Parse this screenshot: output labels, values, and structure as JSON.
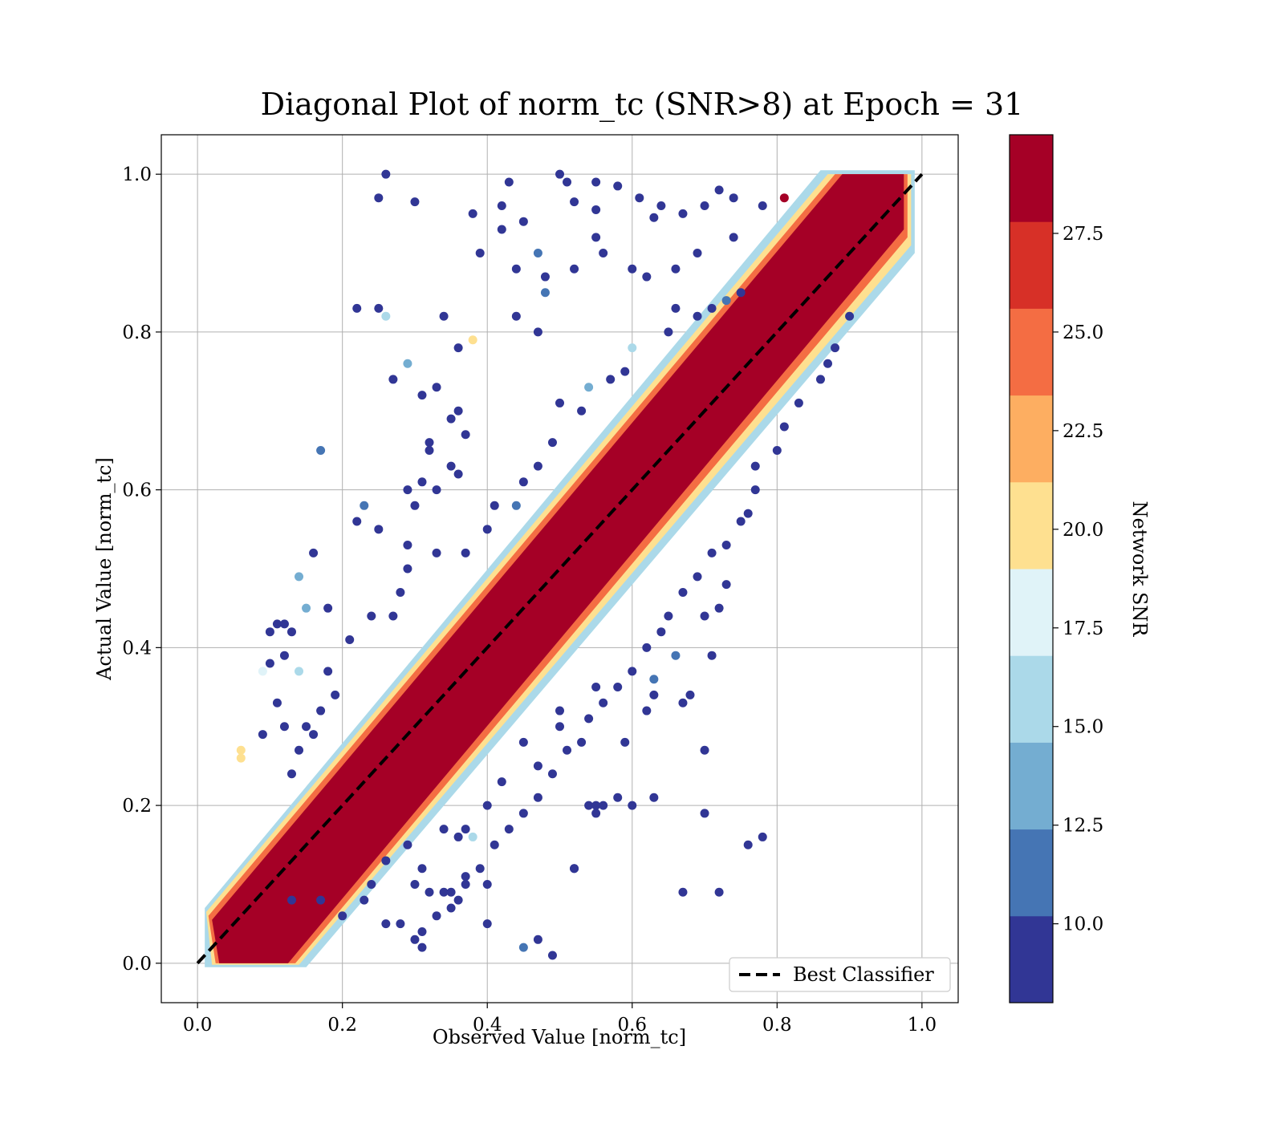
{
  "chart_data": {
    "type": "scatter",
    "title": "Diagonal Plot of norm_tc (SNR>8) at Epoch = 31",
    "xlabel": "Observed Value [norm_tc]",
    "ylabel": "Actual Value [norm_tc]",
    "xlim": [
      -0.05,
      1.05
    ],
    "ylim": [
      -0.05,
      1.05
    ],
    "xticks": [
      "0.0",
      "0.2",
      "0.4",
      "0.6",
      "0.8",
      "1.0"
    ],
    "yticks": [
      "0.0",
      "0.2",
      "0.4",
      "0.6",
      "0.8",
      "1.0"
    ],
    "grid": true,
    "legend": {
      "position": "lower-right",
      "entries": [
        {
          "label": "Best Classifier",
          "style": "dashed",
          "color": "#000000"
        }
      ]
    },
    "reference_line": {
      "name": "Best Classifier",
      "x": [
        0,
        1
      ],
      "y": [
        0,
        1
      ]
    },
    "colorbar": {
      "label": "Network SNR",
      "range": [
        8,
        30
      ],
      "ticks": [
        "10.0",
        "12.5",
        "15.0",
        "17.5",
        "20.0",
        "22.5",
        "25.0",
        "27.5"
      ],
      "tick_values": [
        10,
        12.5,
        15,
        17.5,
        20,
        22.5,
        25,
        27.5
      ],
      "colors": [
        "#313695",
        "#4575b4",
        "#74add1",
        "#abd9e9",
        "#e0f3f8",
        "#fee090",
        "#fdae61",
        "#f46d43",
        "#d73027",
        "#a50026"
      ]
    },
    "series": [
      {
        "description_points": "Outlier samples (x, y, snr)",
        "points": [
          [
            0.26,
            1.0,
            9
          ],
          [
            0.25,
            0.97,
            9
          ],
          [
            0.3,
            0.965,
            9
          ],
          [
            0.38,
            0.95,
            9
          ],
          [
            0.42,
            0.96,
            9
          ],
          [
            0.43,
            0.99,
            9
          ],
          [
            0.5,
            1.0,
            9
          ],
          [
            0.51,
            0.99,
            9
          ],
          [
            0.52,
            0.965,
            9
          ],
          [
            0.55,
            0.955,
            9
          ],
          [
            0.55,
            0.99,
            9
          ],
          [
            0.58,
            0.985,
            9
          ],
          [
            0.61,
            0.97,
            9
          ],
          [
            0.64,
            0.96,
            9
          ],
          [
            0.63,
            0.945,
            9
          ],
          [
            0.67,
            0.95,
            9
          ],
          [
            0.7,
            0.96,
            9
          ],
          [
            0.72,
            0.98,
            9
          ],
          [
            0.74,
            0.97,
            9
          ],
          [
            0.45,
            0.94,
            9
          ],
          [
            0.42,
            0.93,
            9
          ],
          [
            0.39,
            0.9,
            9
          ],
          [
            0.47,
            0.9,
            12
          ],
          [
            0.44,
            0.88,
            9
          ],
          [
            0.48,
            0.87,
            9
          ],
          [
            0.48,
            0.85,
            12
          ],
          [
            0.52,
            0.88,
            9
          ],
          [
            0.55,
            0.92,
            9
          ],
          [
            0.56,
            0.9,
            9
          ],
          [
            0.6,
            0.88,
            9
          ],
          [
            0.62,
            0.87,
            9
          ],
          [
            0.66,
            0.88,
            9
          ],
          [
            0.69,
            0.9,
            9
          ],
          [
            0.74,
            0.92,
            9
          ],
          [
            0.22,
            0.83,
            9
          ],
          [
            0.25,
            0.83,
            9
          ],
          [
            0.26,
            0.82,
            15
          ],
          [
            0.34,
            0.82,
            9
          ],
          [
            0.44,
            0.82,
            9
          ],
          [
            0.47,
            0.8,
            9
          ],
          [
            0.38,
            0.79,
            21
          ],
          [
            0.36,
            0.78,
            9
          ],
          [
            0.29,
            0.76,
            14
          ],
          [
            0.27,
            0.74,
            9
          ],
          [
            0.33,
            0.73,
            9
          ],
          [
            0.31,
            0.72,
            9
          ],
          [
            0.35,
            0.69,
            9
          ],
          [
            0.36,
            0.7,
            9
          ],
          [
            0.37,
            0.67,
            9
          ],
          [
            0.32,
            0.66,
            9
          ],
          [
            0.32,
            0.65,
            9
          ],
          [
            0.35,
            0.63,
            9
          ],
          [
            0.36,
            0.62,
            9
          ],
          [
            0.17,
            0.65,
            12
          ],
          [
            0.29,
            0.6,
            9
          ],
          [
            0.31,
            0.61,
            9
          ],
          [
            0.33,
            0.6,
            9
          ],
          [
            0.23,
            0.58,
            12
          ],
          [
            0.3,
            0.58,
            9
          ],
          [
            0.22,
            0.56,
            9
          ],
          [
            0.25,
            0.55,
            9
          ],
          [
            0.29,
            0.53,
            9
          ],
          [
            0.16,
            0.52,
            9
          ],
          [
            0.14,
            0.49,
            14
          ],
          [
            0.15,
            0.45,
            14
          ],
          [
            0.11,
            0.43,
            9
          ],
          [
            0.1,
            0.42,
            9
          ],
          [
            0.12,
            0.43,
            9
          ],
          [
            0.13,
            0.42,
            9
          ],
          [
            0.18,
            0.45,
            9
          ],
          [
            0.12,
            0.39,
            9
          ],
          [
            0.1,
            0.38,
            9
          ],
          [
            0.09,
            0.37,
            17
          ],
          [
            0.14,
            0.37,
            15
          ],
          [
            0.11,
            0.33,
            9
          ],
          [
            0.12,
            0.3,
            9
          ],
          [
            0.09,
            0.29,
            9
          ],
          [
            0.06,
            0.27,
            20
          ],
          [
            0.06,
            0.26,
            20
          ],
          [
            0.52,
            0.12,
            9
          ],
          [
            0.52,
            0.12,
            9
          ],
          [
            0.54,
            0.2,
            9
          ],
          [
            0.55,
            0.19,
            9
          ],
          [
            0.56,
            0.2,
            9
          ],
          [
            0.6,
            0.2,
            9
          ],
          [
            0.55,
            0.2,
            9
          ],
          [
            0.58,
            0.21,
            9
          ],
          [
            0.63,
            0.21,
            9
          ],
          [
            0.7,
            0.19,
            9
          ],
          [
            0.7,
            0.27,
            9
          ],
          [
            0.67,
            0.33,
            9
          ],
          [
            0.68,
            0.34,
            9
          ],
          [
            0.66,
            0.39,
            12
          ],
          [
            0.71,
            0.39,
            9
          ],
          [
            0.7,
            0.44,
            9
          ],
          [
            0.72,
            0.45,
            9
          ],
          [
            0.73,
            0.48,
            9
          ],
          [
            0.76,
            0.15,
            9
          ],
          [
            0.78,
            0.16,
            9
          ],
          [
            0.67,
            0.09,
            9
          ],
          [
            0.72,
            0.09,
            9
          ],
          [
            0.49,
            0.01,
            9
          ],
          [
            0.47,
            0.03,
            9
          ],
          [
            0.45,
            0.02,
            12
          ],
          [
            0.4,
            0.05,
            9
          ],
          [
            0.4,
            0.1,
            9
          ],
          [
            0.31,
            0.02,
            9
          ],
          [
            0.3,
            0.03,
            9
          ],
          [
            0.63,
            0.36,
            12
          ],
          [
            0.63,
            0.34,
            9
          ],
          [
            0.62,
            0.32,
            9
          ],
          [
            0.59,
            0.28,
            9
          ],
          [
            0.55,
            0.35,
            9
          ],
          [
            0.5,
            0.32,
            9
          ],
          [
            0.5,
            0.3,
            9
          ],
          [
            0.47,
            0.25,
            9
          ],
          [
            0.45,
            0.28,
            9
          ],
          [
            0.42,
            0.23,
            9
          ],
          [
            0.4,
            0.2,
            9
          ],
          [
            0.37,
            0.1,
            9
          ],
          [
            0.36,
            0.08,
            9
          ],
          [
            0.35,
            0.07,
            9
          ],
          [
            0.34,
            0.09,
            9
          ],
          [
            0.32,
            0.09,
            9
          ],
          [
            0.3,
            0.1,
            9
          ],
          [
            0.28,
            0.05,
            9
          ],
          [
            0.26,
            0.05,
            9
          ],
          [
            0.38,
            0.16,
            15
          ],
          [
            0.37,
            0.17,
            9
          ],
          [
            0.36,
            0.16,
            9
          ],
          [
            0.34,
            0.17,
            9
          ],
          [
            0.31,
            0.12,
            9
          ],
          [
            0.29,
            0.15,
            9
          ],
          [
            0.26,
            0.13,
            9
          ],
          [
            0.24,
            0.1,
            9
          ],
          [
            0.23,
            0.08,
            9
          ],
          [
            0.2,
            0.06,
            9
          ],
          [
            0.17,
            0.08,
            9
          ],
          [
            0.13,
            0.08,
            9
          ],
          [
            0.81,
            0.97,
            28
          ],
          [
            0.78,
            0.96,
            9
          ],
          [
            0.73,
            0.84,
            12
          ],
          [
            0.75,
            0.85,
            9
          ],
          [
            0.71,
            0.83,
            9
          ],
          [
            0.69,
            0.82,
            9
          ],
          [
            0.66,
            0.83,
            9
          ],
          [
            0.65,
            0.8,
            9
          ],
          [
            0.6,
            0.78,
            15
          ],
          [
            0.59,
            0.75,
            9
          ],
          [
            0.57,
            0.74,
            9
          ],
          [
            0.54,
            0.73,
            14
          ],
          [
            0.53,
            0.7,
            9
          ],
          [
            0.5,
            0.71,
            9
          ],
          [
            0.49,
            0.66,
            9
          ],
          [
            0.47,
            0.63,
            9
          ],
          [
            0.45,
            0.61,
            9
          ],
          [
            0.44,
            0.58,
            12
          ],
          [
            0.41,
            0.58,
            9
          ],
          [
            0.4,
            0.55,
            9
          ],
          [
            0.37,
            0.52,
            9
          ],
          [
            0.33,
            0.52,
            9
          ],
          [
            0.29,
            0.5,
            9
          ],
          [
            0.28,
            0.47,
            9
          ],
          [
            0.27,
            0.44,
            9
          ],
          [
            0.24,
            0.44,
            9
          ],
          [
            0.21,
            0.41,
            9
          ],
          [
            0.18,
            0.37,
            9
          ],
          [
            0.19,
            0.34,
            9
          ],
          [
            0.17,
            0.32,
            9
          ],
          [
            0.16,
            0.29,
            9
          ],
          [
            0.15,
            0.3,
            9
          ],
          [
            0.14,
            0.27,
            9
          ],
          [
            0.13,
            0.24,
            9
          ],
          [
            0.9,
            0.82,
            9
          ],
          [
            0.88,
            0.78,
            9
          ],
          [
            0.87,
            0.76,
            9
          ],
          [
            0.86,
            0.74,
            9
          ],
          [
            0.83,
            0.71,
            9
          ],
          [
            0.81,
            0.68,
            9
          ],
          [
            0.8,
            0.65,
            9
          ],
          [
            0.77,
            0.63,
            9
          ],
          [
            0.77,
            0.6,
            9
          ],
          [
            0.76,
            0.57,
            9
          ],
          [
            0.75,
            0.56,
            9
          ],
          [
            0.73,
            0.53,
            9
          ],
          [
            0.71,
            0.52,
            9
          ],
          [
            0.69,
            0.49,
            9
          ],
          [
            0.67,
            0.47,
            9
          ],
          [
            0.65,
            0.44,
            9
          ],
          [
            0.64,
            0.42,
            9
          ],
          [
            0.62,
            0.4,
            9
          ],
          [
            0.6,
            0.37,
            9
          ],
          [
            0.58,
            0.35,
            9
          ],
          [
            0.56,
            0.33,
            9
          ],
          [
            0.54,
            0.31,
            9
          ],
          [
            0.53,
            0.28,
            9
          ],
          [
            0.51,
            0.27,
            9
          ],
          [
            0.49,
            0.24,
            9
          ],
          [
            0.47,
            0.21,
            9
          ],
          [
            0.45,
            0.19,
            9
          ],
          [
            0.43,
            0.17,
            9
          ],
          [
            0.41,
            0.15,
            9
          ],
          [
            0.39,
            0.12,
            9
          ],
          [
            0.37,
            0.11,
            9
          ],
          [
            0.35,
            0.09,
            9
          ],
          [
            0.33,
            0.06,
            9
          ],
          [
            0.31,
            0.04,
            9
          ]
        ]
      }
    ]
  }
}
